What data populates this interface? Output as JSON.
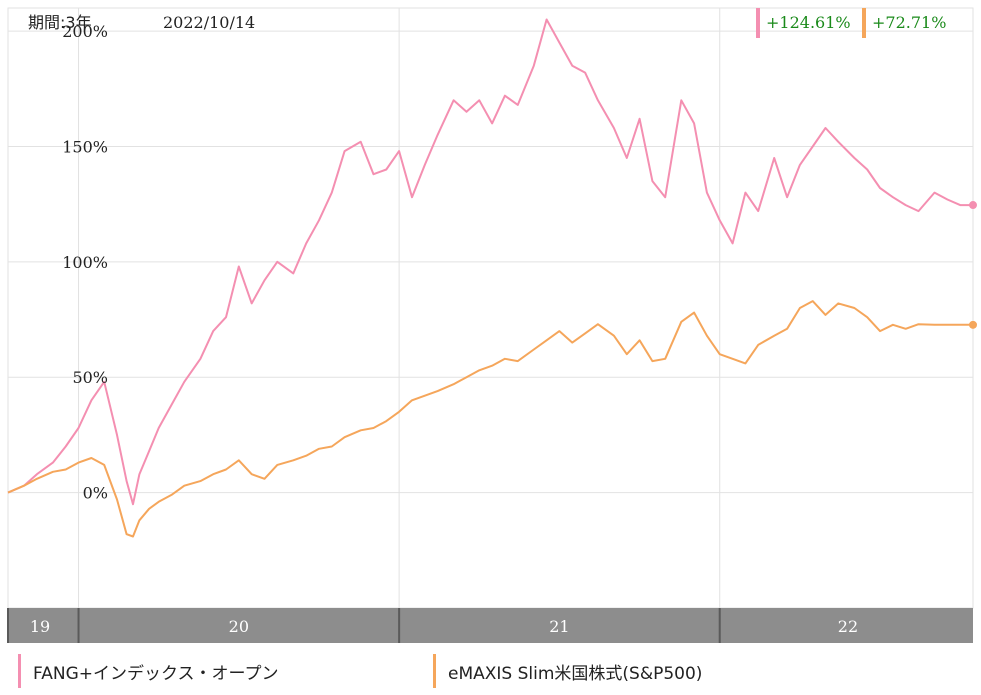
{
  "header": {
    "period_label": "期間:3年",
    "date": "2022/10/14"
  },
  "returns": [
    {
      "value": "+124.61%",
      "color": "#f48fb1"
    },
    {
      "value": "+72.71%",
      "color": "#f5a65b"
    }
  ],
  "chart_data": {
    "type": "line",
    "title": "",
    "xlabel": "",
    "ylabel": "",
    "y_unit": "%",
    "ylim": [
      -50,
      210
    ],
    "xlim": [
      2019.78,
      2022.79
    ],
    "y_ticks": [
      0,
      50,
      100,
      150,
      200
    ],
    "y_tick_labels": [
      "0%",
      "50%",
      "100%",
      "150%",
      "200%"
    ],
    "x_ticks": [
      2019.78,
      2020.0,
      2021.0,
      2022.0
    ],
    "x_tick_labels": [
      "19",
      "20",
      "21",
      "22"
    ],
    "x_label_positions": [
      2019.88,
      2020.5,
      2021.5,
      2022.4
    ],
    "grid": true,
    "series": [
      {
        "name": "FANG+インデックス・オープン",
        "color": "#f48fb1",
        "x": [
          2019.78,
          2019.83,
          2019.87,
          2019.92,
          2019.96,
          2020.0,
          2020.04,
          2020.08,
          2020.12,
          2020.15,
          2020.17,
          2020.19,
          2020.22,
          2020.25,
          2020.29,
          2020.33,
          2020.38,
          2020.42,
          2020.46,
          2020.5,
          2020.54,
          2020.58,
          2020.62,
          2020.67,
          2020.71,
          2020.75,
          2020.79,
          2020.83,
          2020.88,
          2020.92,
          2020.96,
          2021.0,
          2021.04,
          2021.08,
          2021.12,
          2021.17,
          2021.21,
          2021.25,
          2021.29,
          2021.33,
          2021.37,
          2021.42,
          2021.46,
          2021.5,
          2021.54,
          2021.58,
          2021.62,
          2021.67,
          2021.71,
          2021.75,
          2021.79,
          2021.83,
          2021.88,
          2021.92,
          2021.96,
          2022.0,
          2022.04,
          2022.08,
          2022.12,
          2022.17,
          2022.21,
          2022.25,
          2022.29,
          2022.33,
          2022.37,
          2022.42,
          2022.46,
          2022.5,
          2022.54,
          2022.58,
          2022.62,
          2022.67,
          2022.71,
          2022.75,
          2022.79
        ],
        "values": [
          0,
          3,
          8,
          13,
          20,
          28,
          40,
          48,
          25,
          5,
          -5,
          8,
          18,
          28,
          38,
          48,
          58,
          70,
          76,
          98,
          82,
          92,
          100,
          95,
          108,
          118,
          130,
          148,
          152,
          138,
          140,
          148,
          128,
          142,
          155,
          170,
          165,
          170,
          160,
          172,
          168,
          185,
          205,
          195,
          185,
          182,
          170,
          158,
          145,
          162,
          135,
          128,
          170,
          160,
          130,
          118,
          108,
          130,
          122,
          145,
          128,
          142,
          150,
          158,
          152,
          145,
          140,
          132,
          128,
          124.61,
          122,
          130,
          127,
          124.61,
          124.61
        ]
      },
      {
        "name": "eMAXIS Slim米国株式(S&P500)",
        "color": "#f5a65b",
        "x": [
          2019.78,
          2019.83,
          2019.87,
          2019.92,
          2019.96,
          2020.0,
          2020.04,
          2020.08,
          2020.12,
          2020.15,
          2020.17,
          2020.19,
          2020.22,
          2020.25,
          2020.29,
          2020.33,
          2020.38,
          2020.42,
          2020.46,
          2020.5,
          2020.54,
          2020.58,
          2020.62,
          2020.67,
          2020.71,
          2020.75,
          2020.79,
          2020.83,
          2020.88,
          2020.92,
          2020.96,
          2021.0,
          2021.04,
          2021.08,
          2021.12,
          2021.17,
          2021.21,
          2021.25,
          2021.29,
          2021.33,
          2021.37,
          2021.42,
          2021.46,
          2021.5,
          2021.54,
          2021.58,
          2021.62,
          2021.67,
          2021.71,
          2021.75,
          2021.79,
          2021.83,
          2021.88,
          2021.92,
          2021.96,
          2022.0,
          2022.04,
          2022.08,
          2022.12,
          2022.17,
          2022.21,
          2022.25,
          2022.29,
          2022.33,
          2022.37,
          2022.42,
          2022.46,
          2022.5,
          2022.54,
          2022.58,
          2022.62,
          2022.67,
          2022.71,
          2022.75,
          2022.79
        ],
        "values": [
          0,
          3,
          6,
          9,
          10,
          13,
          15,
          12,
          -3,
          -18,
          -19,
          -12,
          -7,
          -4,
          -1,
          3,
          5,
          8,
          10,
          14,
          8,
          6,
          12,
          14,
          16,
          19,
          20,
          24,
          27,
          28,
          31,
          35,
          40,
          42,
          44,
          47,
          50,
          53,
          55,
          58,
          57,
          62,
          66,
          70,
          65,
          69,
          73,
          68,
          60,
          66,
          57,
          58,
          74,
          78,
          68,
          60,
          58,
          56,
          64,
          68,
          71,
          80,
          83,
          77,
          82,
          80,
          76,
          70,
          72.71,
          71,
          73,
          72.71,
          72.71,
          72.71,
          72.71
        ]
      }
    ]
  },
  "legend": [
    {
      "label": "FANG+インデックス・オープン",
      "color": "#f48fb1"
    },
    {
      "label": "eMAXIS Slim米国株式(S&P500)",
      "color": "#f5a65b"
    }
  ]
}
